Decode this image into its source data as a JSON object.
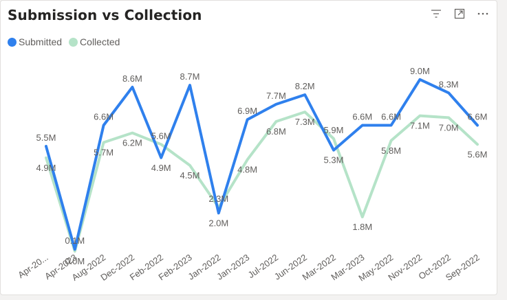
{
  "chart_data": {
    "type": "line",
    "title": "Submission vs Collection",
    "categories": [
      "Apr-20...",
      "Apr-2023",
      "Aug-2022",
      "Dec-2022",
      "Feb-2022",
      "Feb-2023",
      "Jan-2022",
      "Jan-2023",
      "Jul-2022",
      "Jun-2022",
      "Mar-2022",
      "Mar-2023",
      "May-2022",
      "Nov-2022",
      "Oct-2022",
      "Sep-2022"
    ],
    "series": [
      {
        "name": "Submitted",
        "color": "#2f80ed",
        "values": [
          5.5,
          0.1,
          6.6,
          8.6,
          4.9,
          8.7,
          2.0,
          6.9,
          7.7,
          8.2,
          5.3,
          6.6,
          6.6,
          9.0,
          8.3,
          6.6
        ],
        "labels": [
          "5.5M",
          "0.1M",
          "6.6M",
          "8.6M",
          "4.9M",
          "8.7M",
          "2.0M",
          "6.9M",
          "7.7M",
          "8.2M",
          "5.3M",
          "6.6M",
          "6.6M",
          "9.0M",
          "8.3M",
          "6.6M"
        ]
      },
      {
        "name": "Collected",
        "color": "#b5e3c8",
        "values": [
          4.9,
          0.0,
          5.7,
          6.2,
          5.6,
          4.5,
          2.3,
          4.8,
          6.8,
          7.3,
          5.9,
          1.8,
          5.8,
          7.1,
          7.0,
          5.6
        ],
        "labels": [
          "4.9M",
          "0.0M",
          "5.7M",
          "6.2M",
          "5.6M",
          "4.5M",
          "2.3M",
          "4.8M",
          "6.8M",
          "7.3M",
          "5.9M",
          "1.8M",
          "5.8M",
          "7.1M",
          "7.0M",
          "5.6M"
        ]
      }
    ],
    "ylim": [
      0,
      9
    ],
    "grid": false,
    "legend_position": "top-left"
  },
  "icons": {
    "filter": "filter-icon",
    "focus": "focus-mode-icon",
    "more": "more-options-icon"
  }
}
